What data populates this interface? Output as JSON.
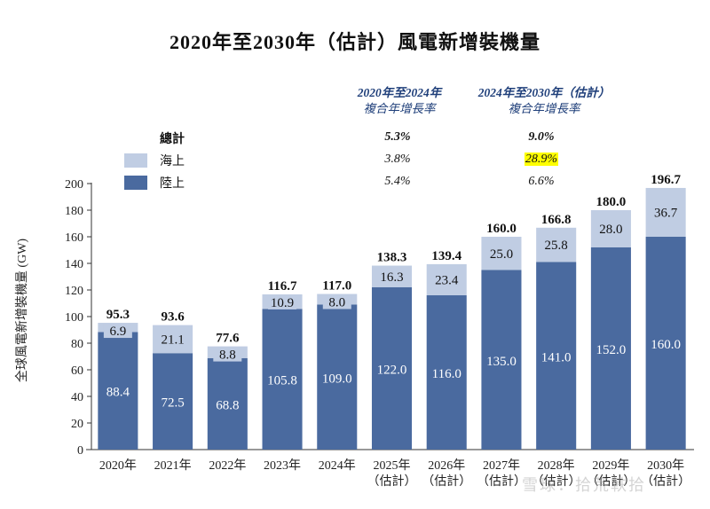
{
  "chart_data": {
    "type": "bar",
    "stacked": true,
    "title": "2020年至2030年（估計）風電新增裝機量",
    "ylabel": "全球風電新增裝機量 (GW)",
    "xlabel": "",
    "ylim": [
      0,
      200
    ],
    "yticks": [
      0,
      20,
      40,
      60,
      80,
      100,
      120,
      140,
      160,
      180,
      200
    ],
    "grid": false,
    "categories": [
      {
        "year": "2020年",
        "note": ""
      },
      {
        "year": "2021年",
        "note": ""
      },
      {
        "year": "2022年",
        "note": ""
      },
      {
        "year": "2023年",
        "note": ""
      },
      {
        "year": "2024年",
        "note": ""
      },
      {
        "year": "2025年",
        "note": "（估計）"
      },
      {
        "year": "2026年",
        "note": "（估計）"
      },
      {
        "year": "2027年",
        "note": "（估計）"
      },
      {
        "year": "2028年",
        "note": "（估計）"
      },
      {
        "year": "2029年",
        "note": "（估計）"
      },
      {
        "year": "2030年",
        "note": "（估計）"
      }
    ],
    "series": [
      {
        "name": "陸上",
        "color": "#4a6a9f",
        "label_color": "#ffffff",
        "values": [
          88.4,
          72.5,
          68.8,
          105.8,
          109.0,
          122.0,
          116.0,
          135.0,
          141.0,
          152.0,
          160.0
        ]
      },
      {
        "name": "海上",
        "color": "#c0cde3",
        "label_color": "#111111",
        "values": [
          6.9,
          21.1,
          8.8,
          10.9,
          8.0,
          16.3,
          23.4,
          25.0,
          25.8,
          28.0,
          36.7
        ]
      }
    ],
    "totals": [
      95.3,
      93.6,
      77.6,
      116.7,
      117.0,
      138.3,
      139.4,
      160.0,
      166.8,
      180.0,
      196.7
    ],
    "legend": {
      "placement": "top-left",
      "total_label": "總計",
      "entries": [
        {
          "name": "海上",
          "color": "#c0cde3"
        },
        {
          "name": "陸上",
          "color": "#4a6a9f"
        }
      ]
    },
    "cagr_table": {
      "columns": [
        {
          "line1": "2020年至2024年",
          "line2": "複合年增長率"
        },
        {
          "line1": "2024年至2030年（估計）",
          "line2": "複合年增長率"
        }
      ],
      "rows": [
        {
          "label": "總計",
          "values": [
            "5.3%",
            "9.0%"
          ],
          "bold": true
        },
        {
          "label": "海上",
          "values": [
            "3.8%",
            "28.9%"
          ],
          "highlight": [
            false,
            true
          ]
        },
        {
          "label": "陸上",
          "values": [
            "5.4%",
            "6.6%"
          ]
        }
      ]
    }
  },
  "watermark": "雪球：拾荒軼拾"
}
